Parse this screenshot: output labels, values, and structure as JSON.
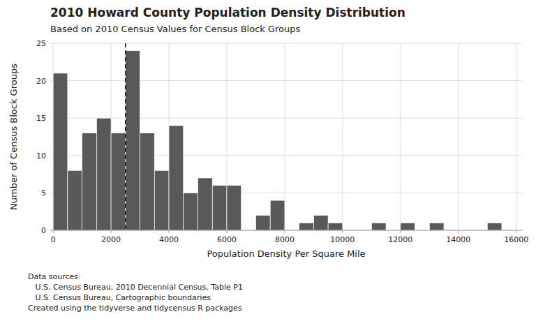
{
  "chart_data": {
    "type": "histogram",
    "title": "2010 Howard County Population Density Distribution",
    "subtitle": "Based on 2010 Census Values for Census Block Groups",
    "x_label": "Population Density Per Square Mile",
    "y_label": "Number of Census Block Groups",
    "footnote": "Data sources:\n   U.S. Census Bureau, 2010 Decennial Census, Table P1\n   U.S. Census Bureau, Cartographic boundaries\nCreated using the tidyverse and tidycensus R packages",
    "color": "#595959",
    "bins": [
      0,
      500,
      1000,
      1500,
      2000,
      2500,
      3000,
      3500,
      4000,
      4500,
      5000,
      5500,
      6000,
      6500,
      7000,
      7500,
      8000,
      8500,
      9000,
      9500,
      10000,
      10500,
      11000,
      11500,
      12000,
      12500,
      13000,
      13500,
      14000,
      14500,
      15000,
      15500,
      16000
    ],
    "values": [
      21,
      8,
      13,
      15,
      13,
      24,
      13,
      8,
      14,
      5,
      7,
      6,
      6,
      0,
      2,
      4,
      0,
      1,
      2,
      1,
      0,
      0,
      1,
      0,
      1,
      0,
      1,
      0,
      0,
      0,
      1,
      0
    ],
    "reference_line": 2500,
    "xlim": [
      -100,
      16200
    ],
    "ylim": [
      0,
      25
    ],
    "xticks": [
      0,
      2000,
      4000,
      6000,
      8000,
      10000,
      12000,
      14000,
      16000
    ],
    "yticks": [
      0,
      5,
      10,
      15,
      20,
      25
    ],
    "grid": true
  }
}
